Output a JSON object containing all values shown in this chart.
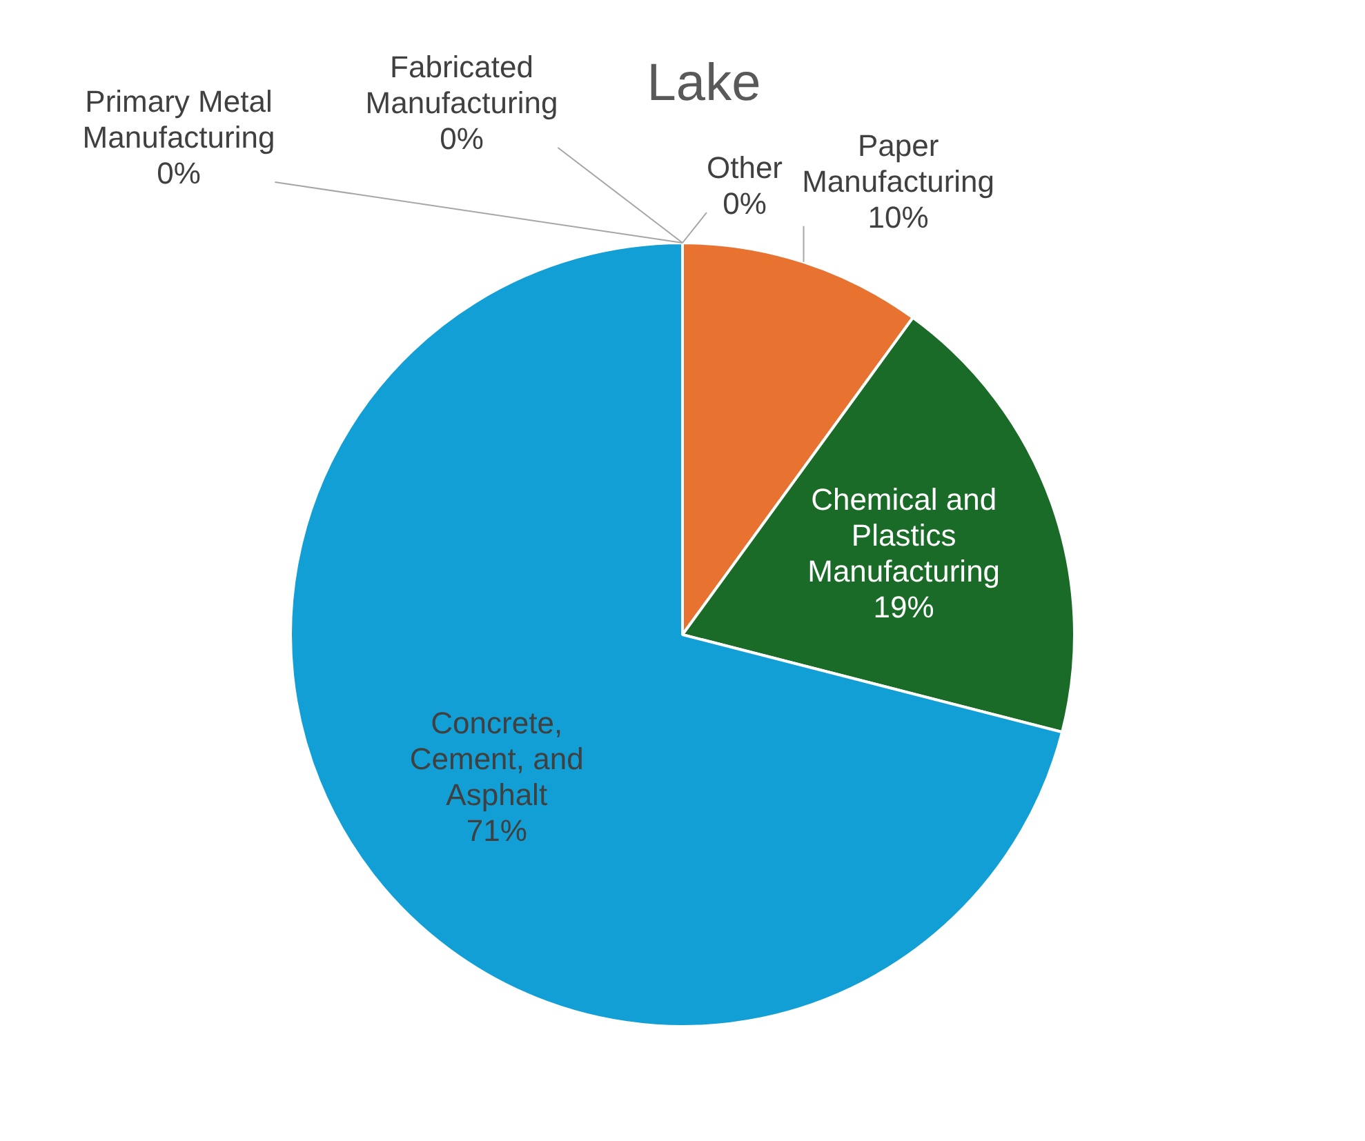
{
  "chart_data": {
    "type": "pie",
    "title": "Lake",
    "categories": [
      "Paper Manufacturing",
      "Chemical and Plastics Manufacturing",
      "Concrete, Cement, and Asphalt",
      "Primary Metal Manufacturing",
      "Fabricated Manufacturing",
      "Other"
    ],
    "values": [
      10,
      19,
      71,
      0,
      0,
      0
    ],
    "colors": [
      "#e8722f",
      "#1b6b28",
      "#119fd6",
      "#7f7f7f",
      "#f2c500",
      "#5a9bd5"
    ],
    "value_labels": [
      "10%",
      "19%",
      "71%",
      "0%",
      "0%",
      "0%"
    ],
    "legend": false
  }
}
